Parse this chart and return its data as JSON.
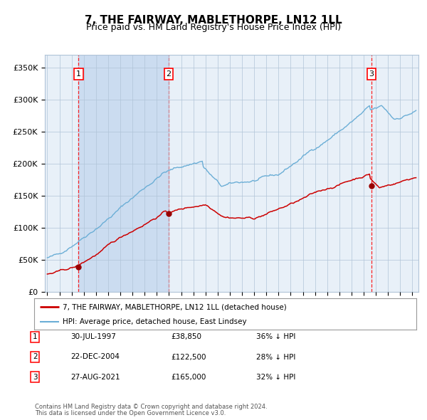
{
  "title": "7, THE FAIRWAY, MABLETHORPE, LN12 1LL",
  "subtitle": "Price paid vs. HM Land Registry's House Price Index (HPI)",
  "title_fontsize": 11,
  "subtitle_fontsize": 9,
  "hpi_color": "#6baed6",
  "price_color": "#cc0000",
  "sale_marker_color": "#990000",
  "plot_bg": "#e8f0f8",
  "grid_color": "#b0c4d8",
  "span_color": "#c8daf0",
  "sales": [
    {
      "num": 1,
      "date_label": "30-JUL-1997",
      "x_val": 1997.57,
      "price": 38850,
      "label": "£38,850",
      "pct": "36% ↓ HPI"
    },
    {
      "num": 2,
      "date_label": "22-DEC-2004",
      "x_val": 2004.98,
      "price": 122500,
      "label": "£122,500",
      "pct": "28% ↓ HPI"
    },
    {
      "num": 3,
      "date_label": "27-AUG-2021",
      "x_val": 2021.65,
      "price": 165000,
      "label": "£165,000",
      "pct": "32% ↓ HPI"
    }
  ],
  "ylabel_ticks": [
    "£0",
    "£50K",
    "£100K",
    "£150K",
    "£200K",
    "£250K",
    "£300K",
    "£350K"
  ],
  "ytick_vals": [
    0,
    50000,
    100000,
    150000,
    200000,
    250000,
    300000,
    350000
  ],
  "ylim": [
    0,
    370000
  ],
  "xlim_start": 1994.8,
  "xlim_end": 2025.5,
  "footer1": "Contains HM Land Registry data © Crown copyright and database right 2024.",
  "footer2": "This data is licensed under the Open Government Licence v3.0.",
  "legend_line1": "7, THE FAIRWAY, MABLETHORPE, LN12 1LL (detached house)",
  "legend_line2": "HPI: Average price, detached house, East Lindsey"
}
